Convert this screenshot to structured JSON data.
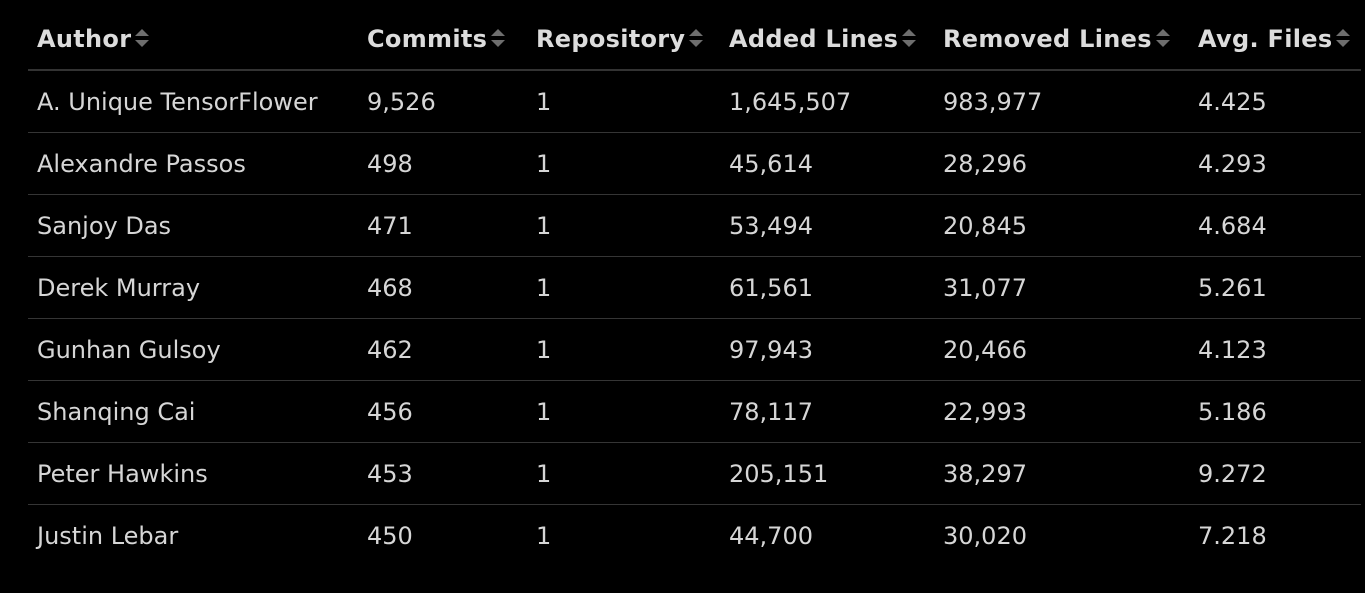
{
  "table": {
    "columns": [
      {
        "label": "Author",
        "sort_icon": "sort-icon"
      },
      {
        "label": "Commits",
        "sort_icon": "sort-icon"
      },
      {
        "label": "Repository",
        "sort_icon": "sort-icon"
      },
      {
        "label": "Added Lines",
        "sort_icon": "sort-icon"
      },
      {
        "label": "Removed Lines",
        "sort_icon": "sort-icon"
      },
      {
        "label": "Avg. Files",
        "sort_icon": "sort-icon"
      }
    ],
    "rows": [
      {
        "author": "A. Unique TensorFlower",
        "commits": "9,526",
        "repository": "1",
        "added": "1,645,507",
        "removed": "983,977",
        "avg_files": "4.425"
      },
      {
        "author": "Alexandre Passos",
        "commits": "498",
        "repository": "1",
        "added": "45,614",
        "removed": "28,296",
        "avg_files": "4.293"
      },
      {
        "author": "Sanjoy Das",
        "commits": "471",
        "repository": "1",
        "added": "53,494",
        "removed": "20,845",
        "avg_files": "4.684"
      },
      {
        "author": "Derek Murray",
        "commits": "468",
        "repository": "1",
        "added": "61,561",
        "removed": "31,077",
        "avg_files": "5.261"
      },
      {
        "author": "Gunhan Gulsoy",
        "commits": "462",
        "repository": "1",
        "added": "97,943",
        "removed": "20,466",
        "avg_files": "4.123"
      },
      {
        "author": "Shanqing Cai",
        "commits": "456",
        "repository": "1",
        "added": "78,117",
        "removed": "22,993",
        "avg_files": "5.186"
      },
      {
        "author": "Peter Hawkins",
        "commits": "453",
        "repository": "1",
        "added": "205,151",
        "removed": "38,297",
        "avg_files": "9.272"
      },
      {
        "author": "Justin Lebar",
        "commits": "450",
        "repository": "1",
        "added": "44,700",
        "removed": "30,020",
        "avg_files": "7.218"
      }
    ]
  },
  "colors": {
    "background": "#000000",
    "text": "#d6d6d6",
    "header_text": "#dcdcdc",
    "row_divider": "#353535",
    "sort_icon": "#6e6e6e"
  }
}
